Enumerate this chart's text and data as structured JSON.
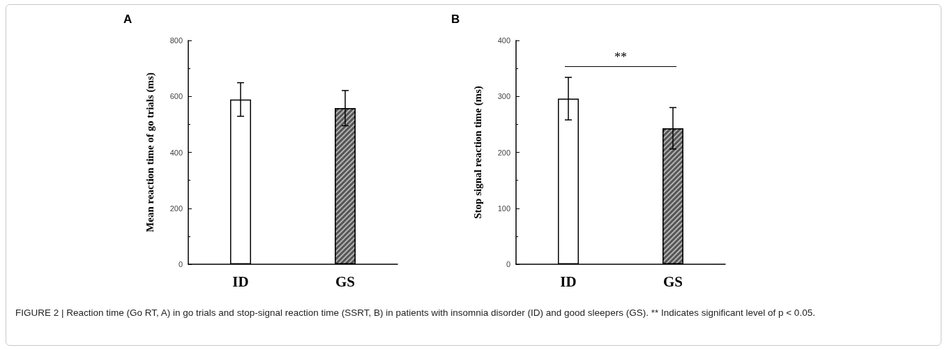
{
  "chart_data": [
    {
      "type": "bar",
      "title": "A",
      "ylabel": "Mean reaction time of go trials (ms)",
      "categories": [
        "ID",
        "GS"
      ],
      "values": [
        589,
        558
      ],
      "colors": [
        "#ffffff",
        "#555555"
      ],
      "errors": [
        60,
        63
      ],
      "ylim": [
        0,
        800
      ],
      "yticks": [
        0,
        200,
        400,
        600,
        800
      ]
    },
    {
      "type": "bar",
      "title": "B",
      "ylabel": "Stop signal reaction time (ms)",
      "categories": [
        "ID",
        "GS"
      ],
      "values": [
        296,
        243
      ],
      "colors": [
        "#ffffff",
        "#555555"
      ],
      "errors": [
        38,
        37
      ],
      "ylim": [
        0,
        400
      ],
      "yticks": [
        0,
        100,
        200,
        300,
        400
      ],
      "annotations": [
        "**",
        "FIGURE 2 | Reaction time (Go RT, A) in go trials and stop-signal reaction time (SSRT, B) in patients with insomnia disorder (ID) and good sleepers (GS). ** Indicates significant level of p < 0.05."
      ]
    }
  ]
}
